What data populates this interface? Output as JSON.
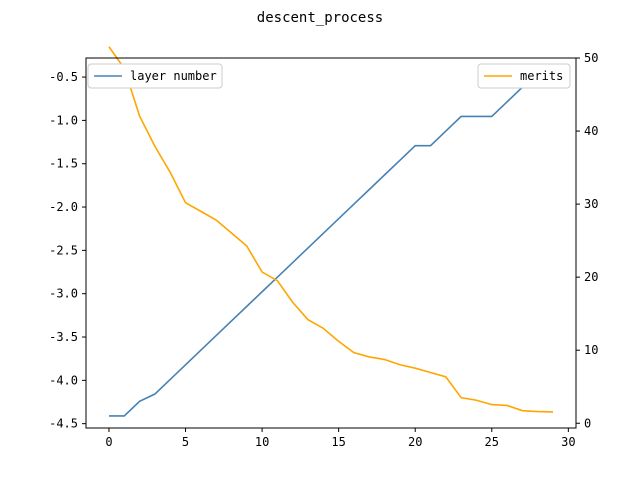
{
  "chart_data": {
    "type": "line",
    "title": "descent_process",
    "xlabel": "",
    "ylabel": "",
    "y2label": "",
    "xlim": [
      -1.5,
      30.5
    ],
    "ylim": [
      -4.55,
      -0.28
    ],
    "y2lim": [
      -0.65,
      50.0
    ],
    "xticks": [
      0,
      5,
      10,
      15,
      20,
      25,
      30
    ],
    "yticks": [
      -4.5,
      -4.0,
      -3.5,
      -3.0,
      -2.5,
      -2.0,
      -1.5,
      -1.0,
      -0.5
    ],
    "y2ticks": [
      0,
      10,
      20,
      30,
      40,
      50
    ],
    "grid": false,
    "series": [
      {
        "name": "layer number",
        "axis": "right",
        "color": "#4682b4",
        "legend_position": "upper-left",
        "x": [
          0,
          1,
          2,
          3,
          4,
          5,
          6,
          7,
          8,
          9,
          10,
          11,
          12,
          13,
          14,
          15,
          16,
          17,
          18,
          19,
          20,
          21,
          22,
          23,
          24,
          25,
          26,
          27,
          28,
          29
        ],
        "values": [
          1,
          1,
          3,
          4,
          6,
          8,
          10,
          12,
          14,
          16,
          18,
          20,
          22,
          24,
          26,
          28,
          30,
          32,
          34,
          36,
          38,
          38,
          40,
          42,
          42,
          42,
          44,
          46,
          46,
          48
        ]
      },
      {
        "name": "merits",
        "axis": "left",
        "color": "#ffa500",
        "legend_position": "upper-right",
        "x": [
          0,
          1,
          2,
          3,
          4,
          5,
          6,
          7,
          8,
          9,
          10,
          11,
          12,
          13,
          14,
          15,
          16,
          17,
          18,
          19,
          20,
          21,
          22,
          23,
          24,
          25,
          26,
          27,
          28,
          29
        ],
        "values": [
          -0.15,
          -0.4,
          -0.95,
          -1.3,
          -1.6,
          -1.95,
          -2.05,
          -2.15,
          -2.3,
          -2.45,
          -2.75,
          -2.85,
          -3.1,
          -3.3,
          -3.4,
          -3.55,
          -3.68,
          -3.73,
          -3.76,
          -3.82,
          -3.86,
          -3.91,
          -3.96,
          -4.2,
          -4.23,
          -4.28,
          -4.29,
          -4.35,
          -4.36,
          -4.365
        ]
      }
    ]
  }
}
